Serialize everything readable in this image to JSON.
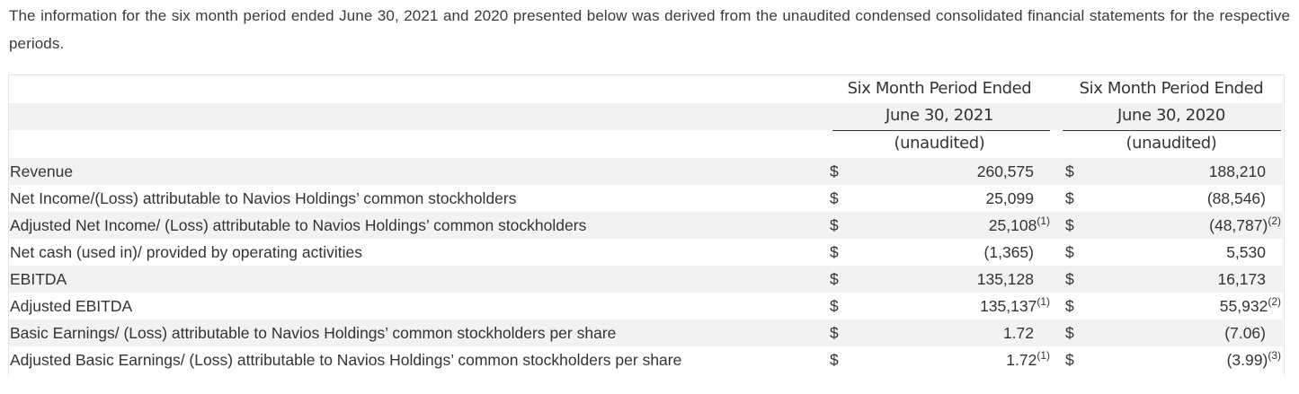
{
  "intro": "The information for the six month period ended June 30, 2021 and 2020 presented below was derived from the unaudited condensed consolidated financial statements for the respective periods.",
  "columns": [
    {
      "line1": "Six Month Period Ended",
      "line2": "June 30, 2021",
      "line3": "(unaudited)"
    },
    {
      "line1": "Six Month Period Ended",
      "line2": "June 30, 2020",
      "line3": "(unaudited)"
    }
  ],
  "rows": [
    {
      "label": "Revenue",
      "cur1": "$",
      "v1": "260,575",
      "f1": "",
      "cur2": "$",
      "v2": "188,210",
      "f2": ""
    },
    {
      "label": "Net Income/(Loss) attributable to Navios Holdings’ common stockholders",
      "cur1": "$",
      "v1": "25,099",
      "f1": "",
      "cur2": "$",
      "v2": "(88,546)",
      "f2": ""
    },
    {
      "label": "Adjusted Net Income/ (Loss) attributable to Navios Holdings’ common stockholders",
      "cur1": "$",
      "v1": "25,108",
      "f1": "(1)",
      "cur2": "$",
      "v2": "(48,787)",
      "f2": "(2)"
    },
    {
      "label": "Net cash (used in)/ provided by operating activities",
      "cur1": "$",
      "v1": "(1,365)",
      "f1": "",
      "cur2": "$",
      "v2": "5,530",
      "f2": ""
    },
    {
      "label": "EBITDA",
      "cur1": "$",
      "v1": "135,128",
      "f1": "",
      "cur2": "$",
      "v2": "16,173",
      "f2": ""
    },
    {
      "label": "Adjusted EBITDA",
      "cur1": "$",
      "v1": "135,137",
      "f1": "(1)",
      "cur2": "$",
      "v2": "55,932",
      "f2": "(2)"
    },
    {
      "label": "Basic Earnings/ (Loss) attributable to Navios Holdings’ common stockholders per share",
      "cur1": "$",
      "v1": "1.72",
      "f1": "",
      "cur2": "$",
      "v2": "(7.06)",
      "f2": ""
    },
    {
      "label": "Adjusted Basic Earnings/ (Loss) attributable to Navios Holdings’ common stockholders per share",
      "cur1": "$",
      "v1": "1.72",
      "f1": "(1)",
      "cur2": "$",
      "v2": "(3.99)",
      "f2": "(3)"
    }
  ]
}
